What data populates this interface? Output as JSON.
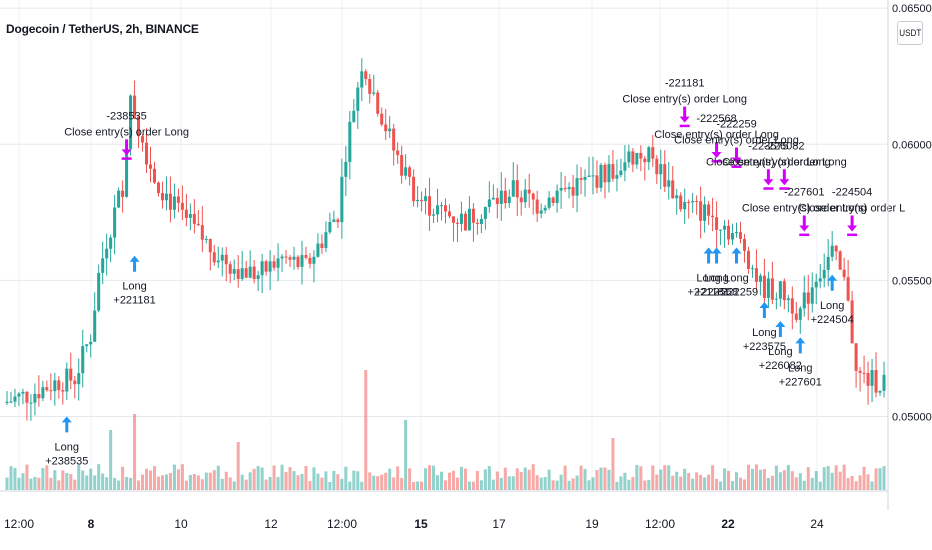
{
  "header": {
    "symbol_title": "Dogecoin / TetherUS, 2h, BINANCE",
    "currency_button": "USDT"
  },
  "chart_data": {
    "type": "candlestick",
    "title": "Dogecoin / TetherUS, 2h, BINANCE",
    "price_axis": {
      "labels": [
        "0.0650000",
        "0.0600000",
        "0.0550000",
        "0.0500000"
      ],
      "values": [
        0.065,
        0.06,
        0.055,
        0.05
      ],
      "range": [
        0.0473,
        0.0653
      ],
      "grid": true
    },
    "time_axis": {
      "labels": [
        "12:00",
        "8",
        "10",
        "12",
        "12:00",
        "15",
        "17",
        "19",
        "12:00",
        "22",
        "24"
      ],
      "bold": [
        false,
        true,
        false,
        false,
        false,
        true,
        false,
        false,
        false,
        true,
        false
      ]
    },
    "colors": {
      "up": "#26a69a",
      "down": "#ef5350",
      "entry_arrow": "#2196f3",
      "exit_arrow": "#d500f9",
      "grid": "#e6e8ec"
    },
    "trend_path": [
      [
        0,
        0.0505
      ],
      [
        8,
        0.0509
      ],
      [
        14,
        0.0513
      ],
      [
        18,
        0.0514
      ],
      [
        22,
        0.053
      ],
      [
        24,
        0.0552
      ],
      [
        26,
        0.0565
      ],
      [
        28,
        0.0575
      ],
      [
        30,
        0.0585
      ],
      [
        32,
        0.0618
      ],
      [
        34,
        0.0606
      ],
      [
        38,
        0.0588
      ],
      [
        44,
        0.0575
      ],
      [
        52,
        0.0562
      ],
      [
        58,
        0.0555
      ],
      [
        64,
        0.0552
      ],
      [
        70,
        0.0558
      ],
      [
        76,
        0.0555
      ],
      [
        80,
        0.0565
      ],
      [
        84,
        0.0575
      ],
      [
        86,
        0.0598
      ],
      [
        90,
        0.063
      ],
      [
        94,
        0.0615
      ],
      [
        98,
        0.0598
      ],
      [
        104,
        0.058
      ],
      [
        110,
        0.0575
      ],
      [
        116,
        0.0572
      ],
      [
        122,
        0.0578
      ],
      [
        128,
        0.0583
      ],
      [
        134,
        0.0578
      ],
      [
        140,
        0.0583
      ],
      [
        146,
        0.0586
      ],
      [
        152,
        0.059
      ],
      [
        158,
        0.0596
      ],
      [
        162,
        0.0596
      ],
      [
        166,
        0.0588
      ],
      [
        170,
        0.0578
      ],
      [
        176,
        0.0575
      ],
      [
        180,
        0.0572
      ],
      [
        186,
        0.0562
      ],
      [
        190,
        0.0548
      ],
      [
        196,
        0.0545
      ],
      [
        200,
        0.0538
      ],
      [
        204,
        0.0552
      ],
      [
        208,
        0.056
      ],
      [
        212,
        0.0545
      ],
      [
        214,
        0.0515
      ],
      [
        218,
        0.0513
      ],
      [
        220,
        0.0513
      ]
    ],
    "bars_total": 221,
    "volume": {
      "label": "",
      "spikes": [
        [
          32,
          0.38
        ],
        [
          90,
          0.6
        ],
        [
          26,
          0.3
        ],
        [
          152,
          0.26
        ],
        [
          58,
          0.24
        ],
        [
          100,
          0.35
        ]
      ]
    },
    "signals": [
      {
        "type": "entry",
        "label": "Long",
        "id": "+238535",
        "bar": 15,
        "price": 0.0503
      },
      {
        "type": "exit",
        "label": "Close entry(s) order Long",
        "id": "-238535",
        "bar": 30,
        "price": 0.0593
      },
      {
        "type": "entry",
        "label": "Long",
        "id": "+221181",
        "bar": 32,
        "price": 0.0562
      },
      {
        "type": "exit",
        "label": "Close entry(s) order Long",
        "id": "-221181",
        "bar": 170,
        "price": 0.0605
      },
      {
        "type": "entry",
        "label": "Long",
        "id": "+221181",
        "bar": 176,
        "price": 0.0565
      },
      {
        "type": "entry",
        "label": "Long",
        "id": "+222568",
        "bar": 178,
        "price": 0.0565
      },
      {
        "type": "entry",
        "label": "Long",
        "id": "+222259",
        "bar": 183,
        "price": 0.0565
      },
      {
        "type": "exit",
        "label": "Close entry(s) order Long",
        "id": "-222568",
        "bar": 178,
        "price": 0.0592
      },
      {
        "type": "exit",
        "label": "Close entry(s) order Long",
        "id": "-222259",
        "bar": 183,
        "price": 0.059
      },
      {
        "type": "exit",
        "label": "Close entry(s) order Long",
        "id": "-223575",
        "bar": 191,
        "price": 0.0582
      },
      {
        "type": "exit",
        "label": "Close entry(s) order Long",
        "id": "-226082",
        "bar": 195,
        "price": 0.0582
      },
      {
        "type": "exit",
        "label": "Close entry(s) order Long",
        "id": "-227601",
        "bar": 200,
        "price": 0.0565
      },
      {
        "type": "exit",
        "label": "Close entry(s) order L",
        "id": "-224504",
        "bar": 212,
        "price": 0.0565
      },
      {
        "type": "entry",
        "label": "Long",
        "id": "+223575",
        "bar": 190,
        "price": 0.0545
      },
      {
        "type": "entry",
        "label": "Long",
        "id": "+226082",
        "bar": 194,
        "price": 0.0538
      },
      {
        "type": "entry",
        "label": "Long",
        "id": "+227601",
        "bar": 199,
        "price": 0.0532
      },
      {
        "type": "entry",
        "label": "Long",
        "id": "+224504",
        "bar": 207,
        "price": 0.0555
      }
    ]
  }
}
